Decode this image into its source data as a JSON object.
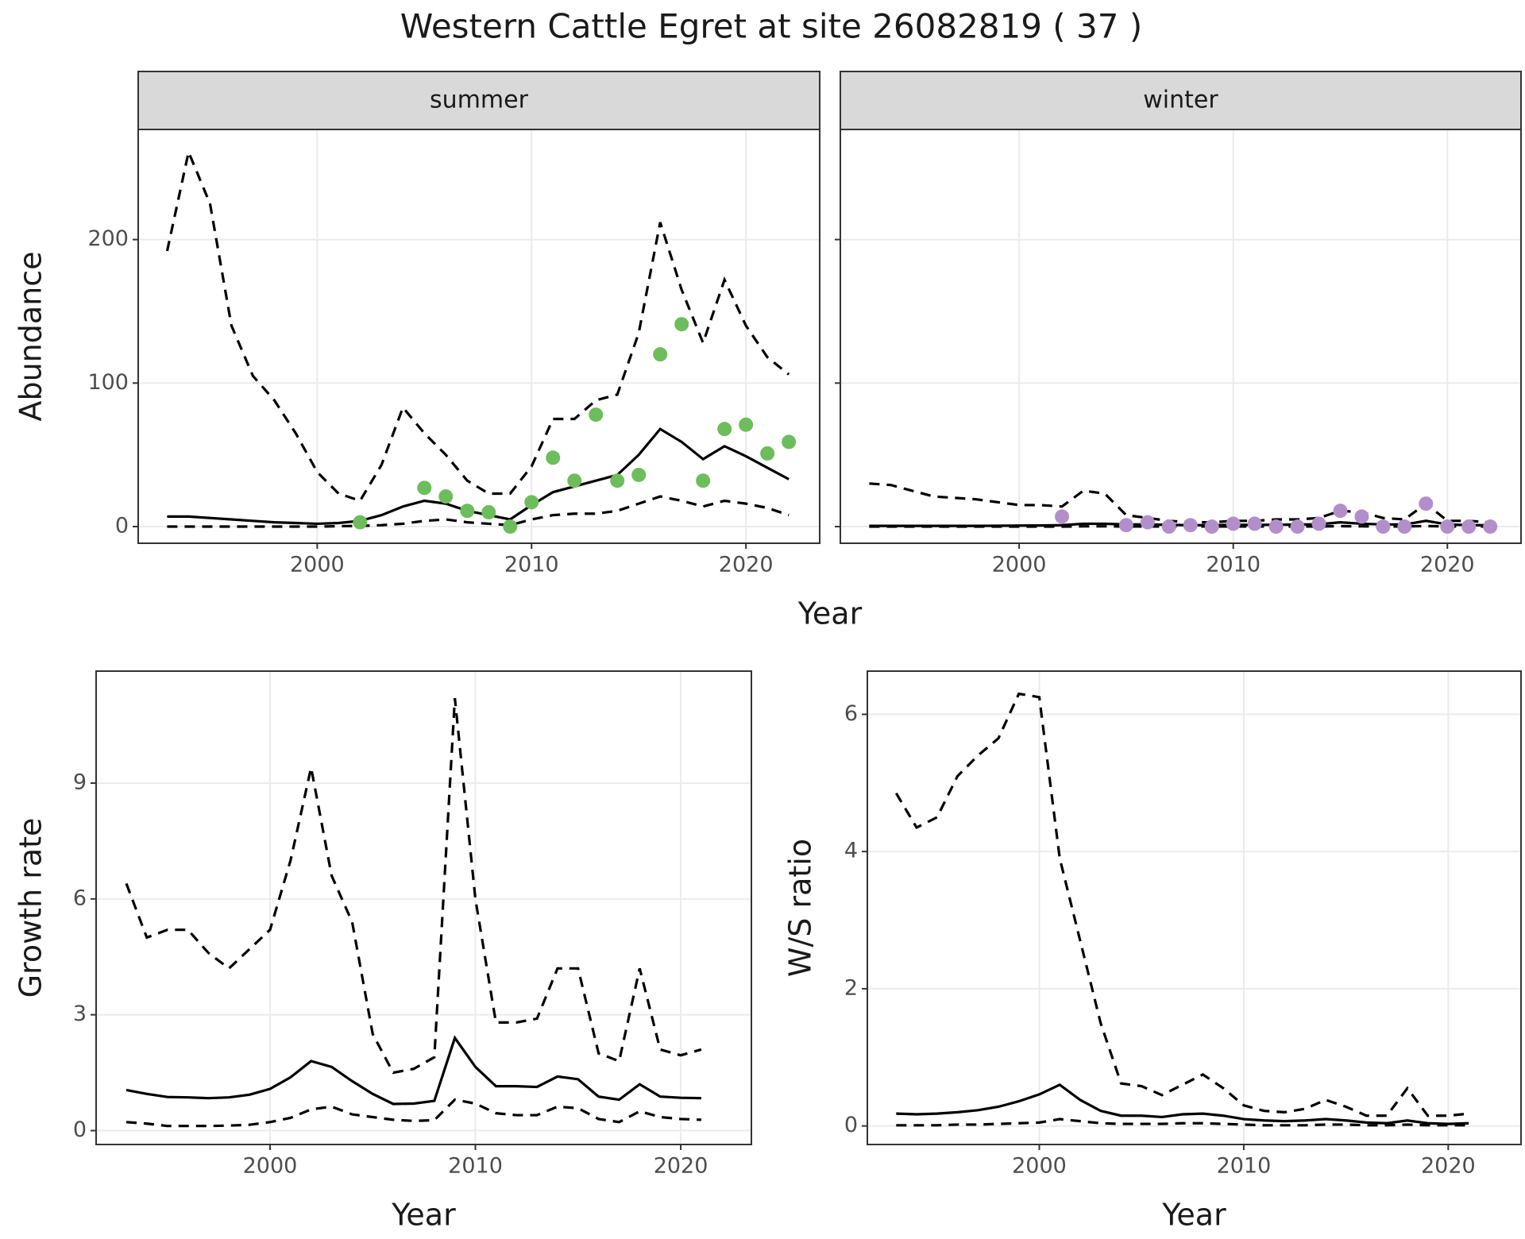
{
  "title": "Western Cattle Egret at site 26082819 ( 37 )",
  "chart_data": [
    {
      "type": "line",
      "facet": "summer",
      "xlabel": "Year",
      "ylabel": "Abundance",
      "x": [
        1993,
        1994,
        1995,
        1996,
        1997,
        1998,
        1999,
        2000,
        2001,
        2002,
        2003,
        2004,
        2005,
        2006,
        2007,
        2008,
        2009,
        2010,
        2011,
        2012,
        2013,
        2014,
        2015,
        2016,
        2017,
        2018,
        2019,
        2020,
        2021,
        2022
      ],
      "series": [
        {
          "color": "#000000",
          "dash": true,
          "values": [
            192,
            261,
            225,
            140,
            105,
            88,
            65,
            38,
            23,
            18,
            43,
            83,
            65,
            50,
            32,
            23,
            23,
            42,
            75,
            75,
            88,
            92,
            135,
            212,
            165,
            128,
            172,
            140,
            118,
            106
          ]
        },
        {
          "color": "#000000",
          "dash": false,
          "values": [
            7,
            7,
            6,
            5,
            4,
            3,
            2.5,
            2,
            2.5,
            4,
            8,
            14,
            18,
            16,
            11,
            8,
            5,
            15,
            24,
            28,
            32,
            36,
            50,
            68,
            59,
            47,
            56,
            49,
            41,
            33
          ]
        },
        {
          "color": "#000000",
          "dash": true,
          "values": [
            0,
            0,
            0,
            0,
            0,
            0,
            0,
            0,
            0.3,
            0.5,
            1,
            2,
            4,
            5,
            3,
            2,
            1,
            5,
            8,
            9,
            9,
            11,
            16,
            21,
            18,
            14,
            18,
            16,
            13,
            8
          ]
        }
      ],
      "points": {
        "color": "#6dbd5c",
        "x": [
          2002,
          2005,
          2006,
          2007,
          2008,
          2009,
          2010,
          2011,
          2012,
          2013,
          2014,
          2015,
          2016,
          2017,
          2018,
          2019,
          2020,
          2021,
          2022
        ],
        "values": [
          3,
          27,
          21,
          11,
          10,
          0,
          17,
          48,
          32,
          78,
          32,
          36,
          120,
          141,
          32,
          68,
          71,
          51,
          59
        ]
      },
      "xlim": [
        1991.65,
        2023.44
      ],
      "ylim": [
        -11.6,
        276.7
      ],
      "xticks": [
        2000,
        2010,
        2020
      ],
      "yticks": [
        0,
        100,
        200
      ],
      "ytick_labels": true,
      "grid": true
    },
    {
      "type": "line",
      "facet": "winter",
      "x": [
        1993,
        1994,
        1995,
        1996,
        1997,
        1998,
        1999,
        2000,
        2001,
        2002,
        2003,
        2004,
        2005,
        2006,
        2007,
        2008,
        2009,
        2010,
        2011,
        2012,
        2013,
        2014,
        2015,
        2016,
        2017,
        2018,
        2019,
        2020,
        2021,
        2022
      ],
      "series": [
        {
          "color": "#000000",
          "dash": true,
          "values": [
            30,
            29,
            25,
            21,
            20,
            19,
            17,
            15,
            15,
            14,
            25,
            23,
            8,
            6,
            4,
            3,
            3,
            4,
            4,
            5,
            5,
            6,
            11,
            10,
            6,
            5,
            16,
            4,
            4,
            3
          ]
        },
        {
          "color": "#000000",
          "dash": false,
          "values": [
            0.5,
            0.5,
            0.5,
            0.5,
            0.5,
            0.5,
            0.6,
            0.7,
            0.8,
            1,
            2,
            2,
            1.5,
            1.5,
            1.2,
            1,
            1,
            1.2,
            1.2,
            1.3,
            1.4,
            1.6,
            3,
            2,
            1.5,
            1.5,
            4,
            1.5,
            1,
            1
          ]
        },
        {
          "color": "#000000",
          "dash": true,
          "values": [
            0,
            0,
            0,
            0,
            0,
            0,
            0,
            0,
            0,
            0,
            0.2,
            0.2,
            0.1,
            0.1,
            0.1,
            0.1,
            0.1,
            0.1,
            0.1,
            0.1,
            0.1,
            0.1,
            0.3,
            0.2,
            0.1,
            0.1,
            0.4,
            0.1,
            0.1,
            0.1
          ]
        }
      ],
      "points": {
        "color": "#b28fcb",
        "x": [
          2002,
          2005,
          2006,
          2007,
          2008,
          2009,
          2010,
          2011,
          2012,
          2013,
          2014,
          2015,
          2016,
          2017,
          2018,
          2019,
          2020,
          2021,
          2022
        ],
        "values": [
          7,
          1,
          3,
          0,
          1,
          0,
          2,
          2,
          0,
          0,
          2,
          11,
          7,
          0,
          0,
          16,
          0,
          0,
          0
        ]
      },
      "xlim": [
        1991.65,
        2023.44
      ],
      "ylim": [
        -11.6,
        276.7
      ],
      "xticks": [
        2000,
        2010,
        2020
      ],
      "yticks": [
        0,
        100,
        200
      ],
      "ytick_labels": false,
      "grid": true
    },
    {
      "type": "line",
      "xlabel": "Year",
      "ylabel": "Growth rate",
      "x": [
        1993,
        1994,
        1995,
        1996,
        1997,
        1998,
        1999,
        2000,
        2001,
        2002,
        2003,
        2004,
        2005,
        2006,
        2007,
        2008,
        2009,
        2010,
        2011,
        2012,
        2013,
        2014,
        2015,
        2016,
        2017,
        2018,
        2019,
        2020,
        2021
      ],
      "series": [
        {
          "color": "#000000",
          "dash": true,
          "values": [
            6.4,
            5.0,
            5.2,
            5.2,
            4.6,
            4.2,
            4.7,
            5.2,
            7.0,
            9.4,
            6.6,
            5.4,
            2.5,
            1.5,
            1.6,
            1.9,
            11.2,
            6.0,
            2.8,
            2.8,
            2.9,
            4.2,
            4.2,
            2.0,
            1.8,
            4.2,
            2.1,
            1.95,
            2.1
          ]
        },
        {
          "color": "#000000",
          "dash": false,
          "values": [
            1.05,
            0.95,
            0.87,
            0.86,
            0.84,
            0.86,
            0.93,
            1.08,
            1.38,
            1.8,
            1.65,
            1.28,
            0.95,
            0.69,
            0.7,
            0.77,
            2.4,
            1.65,
            1.15,
            1.15,
            1.13,
            1.4,
            1.33,
            0.88,
            0.8,
            1.2,
            0.88,
            0.85,
            0.84
          ]
        },
        {
          "color": "#000000",
          "dash": true,
          "values": [
            0.22,
            0.18,
            0.12,
            0.12,
            0.12,
            0.13,
            0.15,
            0.22,
            0.33,
            0.55,
            0.62,
            0.42,
            0.35,
            0.28,
            0.25,
            0.27,
            0.8,
            0.7,
            0.45,
            0.4,
            0.4,
            0.62,
            0.58,
            0.3,
            0.22,
            0.5,
            0.35,
            0.3,
            0.28
          ]
        }
      ],
      "xlim": [
        1991.53,
        2023.44
      ],
      "ylim": [
        -0.36,
        11.9
      ],
      "xticks": [
        2000,
        2010,
        2020
      ],
      "yticks": [
        0,
        3,
        6,
        9
      ],
      "ytick_labels": true,
      "grid": true
    },
    {
      "type": "line",
      "xlabel": "Year",
      "ylabel": "W/S ratio",
      "x": [
        1993,
        1994,
        1995,
        1996,
        1997,
        1998,
        1999,
        2000,
        2001,
        2002,
        2003,
        2004,
        2005,
        2006,
        2007,
        2008,
        2009,
        2010,
        2011,
        2012,
        2013,
        2014,
        2015,
        2016,
        2017,
        2018,
        2019,
        2020,
        2021
      ],
      "series": [
        {
          "color": "#000000",
          "dash": true,
          "values": [
            4.85,
            4.35,
            4.5,
            5.1,
            5.4,
            5.65,
            6.3,
            6.25,
            3.9,
            2.7,
            1.5,
            0.62,
            0.58,
            0.45,
            0.6,
            0.75,
            0.55,
            0.3,
            0.22,
            0.2,
            0.25,
            0.38,
            0.28,
            0.15,
            0.15,
            0.55,
            0.15,
            0.15,
            0.18
          ]
        },
        {
          "color": "#000000",
          "dash": false,
          "values": [
            0.18,
            0.17,
            0.18,
            0.2,
            0.23,
            0.28,
            0.36,
            0.46,
            0.6,
            0.38,
            0.22,
            0.15,
            0.15,
            0.13,
            0.17,
            0.18,
            0.15,
            0.1,
            0.08,
            0.07,
            0.08,
            0.1,
            0.08,
            0.05,
            0.04,
            0.08,
            0.04,
            0.03,
            0.04
          ]
        },
        {
          "color": "#000000",
          "dash": true,
          "values": [
            0.01,
            0.01,
            0.01,
            0.02,
            0.02,
            0.03,
            0.04,
            0.05,
            0.1,
            0.07,
            0.04,
            0.03,
            0.03,
            0.03,
            0.04,
            0.04,
            0.03,
            0.02,
            0.01,
            0.01,
            0.01,
            0.02,
            0.02,
            0.01,
            0.01,
            0.02,
            0.01,
            0.01,
            0.01
          ]
        }
      ],
      "xlim": [
        1991.59,
        2023.56
      ],
      "ylim": [
        -0.27,
        6.63
      ],
      "xticks": [
        2000,
        2010,
        2020
      ],
      "yticks": [
        0,
        2,
        4,
        6
      ],
      "ytick_labels": true,
      "grid": true
    }
  ]
}
